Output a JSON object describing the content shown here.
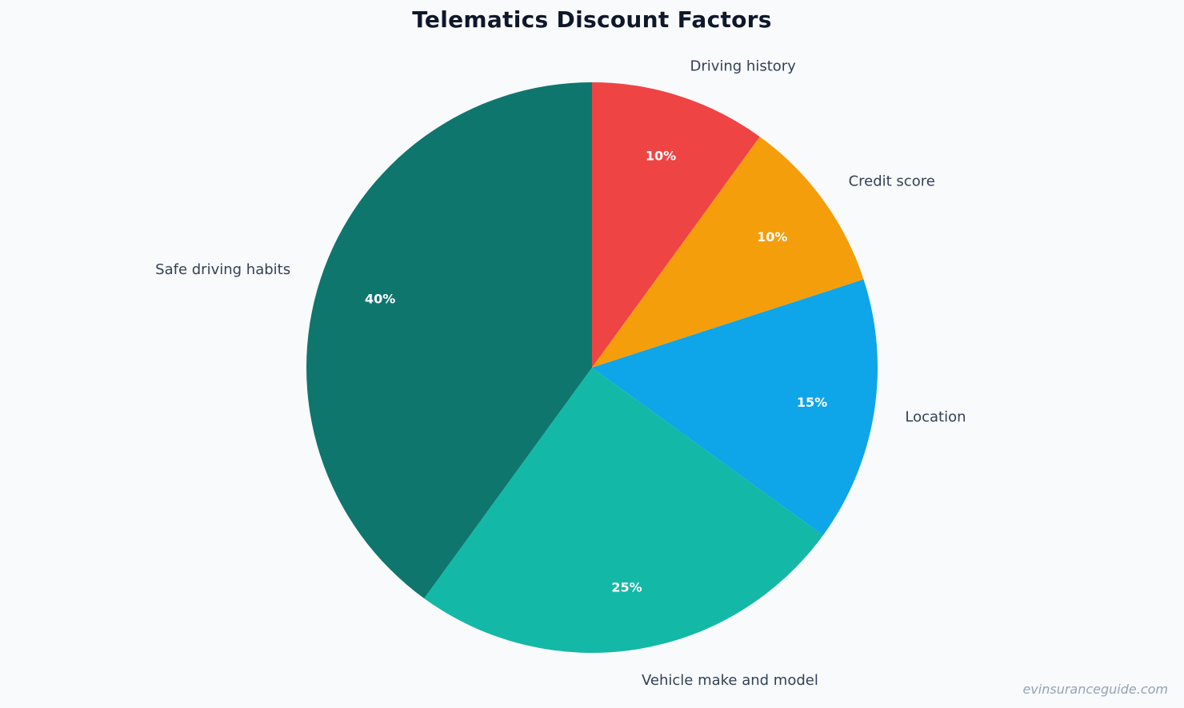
{
  "chart_data": {
    "type": "pie",
    "title": "Telematics Discount Factors",
    "slices": [
      {
        "label": "Driving history",
        "value": 10,
        "display": "10%",
        "color": "#ef4444"
      },
      {
        "label": "Credit score",
        "value": 10,
        "display": "10%",
        "color": "#f59e0b"
      },
      {
        "label": "Location",
        "value": 15,
        "display": "15%",
        "color": "#0ea5e9"
      },
      {
        "label": "Vehicle make and model",
        "value": 25,
        "display": "25%",
        "color": "#14b8a6"
      },
      {
        "label": "Safe driving habits",
        "value": 40,
        "display": "40%",
        "color": "#0f766e"
      }
    ],
    "start_angle_deg": 90,
    "direction": "clockwise"
  },
  "watermark": "evinsuranceguide.com"
}
